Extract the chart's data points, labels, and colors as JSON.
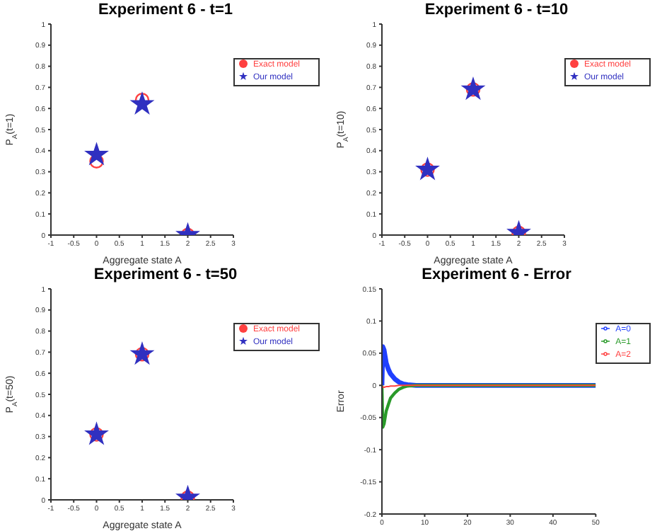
{
  "chart_data": [
    {
      "type": "scatter",
      "title": "Experiment 6 - t=1",
      "xlabel": "Aggregate state A",
      "ylabel": "P$_{A}$(t=1)",
      "xlim": [
        -1,
        3
      ],
      "xticks": [
        -1,
        -0.5,
        0,
        0.5,
        1,
        1.5,
        2,
        2.5,
        3
      ],
      "ylim": [
        0,
        1
      ],
      "yticks": [
        0,
        0.1,
        0.2,
        0.3,
        0.4,
        0.5,
        0.6,
        0.7,
        0.8,
        0.9,
        1
      ],
      "grid": false,
      "legend": "top right",
      "x": [
        0,
        1,
        2
      ],
      "series": [
        {
          "name": "Exact model",
          "color": "#ff4040",
          "marker": "circle",
          "values": [
            0.35,
            0.64,
            0
          ]
        },
        {
          "name": "Our model",
          "color": "#3030c0",
          "marker": "star",
          "values": [
            0.38,
            0.62,
            0
          ]
        }
      ]
    },
    {
      "type": "scatter",
      "title": "Experiment 6 - t=10",
      "xlabel": "Aggregate state A",
      "ylabel": "P$_{A}$(t=10)",
      "xlim": [
        -1,
        3
      ],
      "xticks": [
        -1,
        -0.5,
        0,
        0.5,
        1,
        1.5,
        2,
        2.5,
        3
      ],
      "ylim": [
        0,
        1
      ],
      "yticks": [
        0,
        0.1,
        0.2,
        0.3,
        0.4,
        0.5,
        0.6,
        0.7,
        0.8,
        0.9,
        1
      ],
      "grid": false,
      "legend": "top right",
      "x": [
        0,
        1,
        2
      ],
      "series": [
        {
          "name": "Exact model",
          "color": "#ff4040",
          "marker": "circle",
          "values": [
            0.31,
            0.69,
            0.01
          ]
        },
        {
          "name": "Our model",
          "color": "#3030c0",
          "marker": "star",
          "values": [
            0.31,
            0.69,
            0.01
          ]
        }
      ]
    },
    {
      "type": "scatter",
      "title": "Experiment 6 - t=50",
      "xlabel": "Aggregate state A",
      "ylabel": "P$_{A}$(t=50)",
      "xlim": [
        -1,
        3
      ],
      "xticks": [
        -1,
        -0.5,
        0,
        0.5,
        1,
        1.5,
        2,
        2.5,
        3
      ],
      "ylim": [
        0,
        1
      ],
      "yticks": [
        0,
        0.1,
        0.2,
        0.3,
        0.4,
        0.5,
        0.6,
        0.7,
        0.8,
        0.9,
        1
      ],
      "grid": false,
      "legend": "top right",
      "x": [
        0,
        1,
        2
      ],
      "series": [
        {
          "name": "Exact model",
          "color": "#ff4040",
          "marker": "circle",
          "values": [
            0.31,
            0.69,
            0.01
          ]
        },
        {
          "name": "Our model",
          "color": "#3030c0",
          "marker": "star",
          "values": [
            0.31,
            0.69,
            0.01
          ]
        }
      ]
    },
    {
      "type": "line",
      "title": "Experiment 6 - Error",
      "ylabel": "Error",
      "xlim": [
        0,
        50
      ],
      "xticks": [
        0,
        10,
        20,
        30,
        40,
        50
      ],
      "ylim": [
        -0.2,
        0.15
      ],
      "yticks": [
        -0.2,
        -0.15,
        -0.1,
        -0.05,
        0,
        0.05,
        0.1,
        0.15
      ],
      "grid": false,
      "legend": "top right",
      "marker": "none",
      "x": [
        0,
        0.2,
        0.5,
        1,
        1.5,
        2,
        3,
        4,
        5,
        6,
        8,
        50
      ],
      "series": [
        {
          "name": "A=0",
          "color": "#2040ff",
          "values": [
            0,
            0.06,
            0.055,
            0.035,
            0.025,
            0.018,
            0.01,
            0.005,
            0.002,
            0.001,
            0,
            0
          ]
        },
        {
          "name": "A=1",
          "color": "#2a9a2a",
          "values": [
            0,
            -0.065,
            -0.06,
            -0.04,
            -0.03,
            -0.02,
            -0.012,
            -0.006,
            -0.003,
            -0.001,
            0,
            0
          ]
        },
        {
          "name": "A=2",
          "color": "#ff4040",
          "values": [
            0,
            -0.003,
            -0.003,
            -0.002,
            -0.002,
            -0.001,
            -0.001,
            0,
            0,
            0,
            0,
            0
          ]
        }
      ]
    }
  ]
}
